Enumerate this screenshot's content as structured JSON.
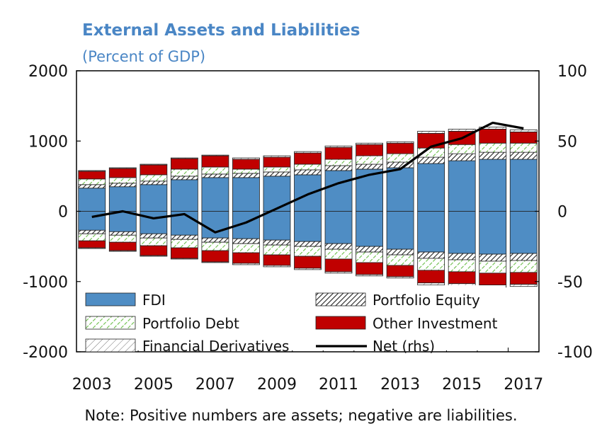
{
  "chart_data": {
    "type": "bar",
    "title": "External Assets and Liabilities",
    "subtitle": "(Percent of GDP)",
    "note": "Note: Positive numbers are assets; negative are liabilities.",
    "categories": [
      "2003",
      "2004",
      "2005",
      "2006",
      "2007",
      "2008",
      "2009",
      "2010",
      "2011",
      "2012",
      "2013",
      "2014",
      "2015",
      "2016",
      "2017"
    ],
    "x_tick_labels": [
      "2003",
      "2005",
      "2007",
      "2009",
      "2011",
      "2013",
      "2015",
      "2017"
    ],
    "ylim": [
      -2000,
      2000
    ],
    "y_ticks": [
      -2000,
      -1000,
      0,
      1000,
      2000
    ],
    "y2lim": [
      -100,
      100
    ],
    "y2_ticks": [
      -100,
      -50,
      0,
      50,
      100
    ],
    "grid": false,
    "stacked": true,
    "series": [
      {
        "name": "FDI",
        "color": "#4f8dc4",
        "pattern": "solid",
        "assets": [
          330,
          350,
          380,
          450,
          480,
          480,
          500,
          520,
          580,
          600,
          620,
          680,
          720,
          740,
          740
        ],
        "liabilities": [
          -270,
          -290,
          -320,
          -340,
          -380,
          -390,
          -410,
          -430,
          -460,
          -500,
          -540,
          -580,
          -600,
          -610,
          -600
        ]
      },
      {
        "name": "Portfolio Equity",
        "color": "#ffffff",
        "pattern": "dense-hatch",
        "assets": [
          50,
          50,
          50,
          50,
          50,
          60,
          60,
          70,
          70,
          70,
          80,
          90,
          100,
          100,
          100
        ],
        "liabilities": [
          -50,
          -50,
          -60,
          -60,
          -60,
          -70,
          -70,
          -70,
          -80,
          -80,
          -80,
          -90,
          -90,
          -100,
          -100
        ]
      },
      {
        "name": "Portfolio Debt",
        "color": "#7ec860",
        "pattern": "green-hatch",
        "assets": [
          80,
          80,
          90,
          100,
          100,
          60,
          70,
          80,
          90,
          120,
          120,
          130,
          130,
          130,
          130
        ],
        "liabilities": [
          -100,
          -100,
          -110,
          -120,
          -120,
          -130,
          -140,
          -140,
          -140,
          -150,
          -150,
          -170,
          -170,
          -170,
          -170
        ]
      },
      {
        "name": "Other Investment",
        "color": "#c00000",
        "pattern": "solid",
        "assets": [
          110,
          130,
          140,
          150,
          160,
          140,
          140,
          160,
          170,
          160,
          150,
          210,
          190,
          200,
          160
        ],
        "liabilities": [
          -100,
          -120,
          -140,
          -150,
          -160,
          -150,
          -150,
          -170,
          -180,
          -170,
          -160,
          -180,
          -170,
          -170,
          -170
        ]
      },
      {
        "name": "Financial Derivatives",
        "color": "#ffffff",
        "pattern": "sparse-hatch",
        "assets": [
          10,
          10,
          10,
          10,
          10,
          20,
          20,
          20,
          20,
          20,
          20,
          30,
          30,
          30,
          30
        ],
        "liabilities": [
          -10,
          -10,
          -10,
          -10,
          -10,
          -20,
          -20,
          -20,
          -20,
          -20,
          -20,
          -30,
          -30,
          -30,
          -30
        ]
      }
    ],
    "line": {
      "name": "Net (rhs)",
      "color": "#000000",
      "axis": "rhs",
      "values": [
        -4,
        0,
        -5,
        -2,
        -15,
        -8,
        2,
        12,
        20,
        26,
        30,
        46,
        52,
        63,
        59
      ]
    },
    "legend": {
      "position": "bottom-inside",
      "order": [
        "FDI",
        "Portfolio Equity",
        "Portfolio Debt",
        "Other Investment",
        "Financial Derivatives",
        "Net (rhs)"
      ]
    }
  }
}
